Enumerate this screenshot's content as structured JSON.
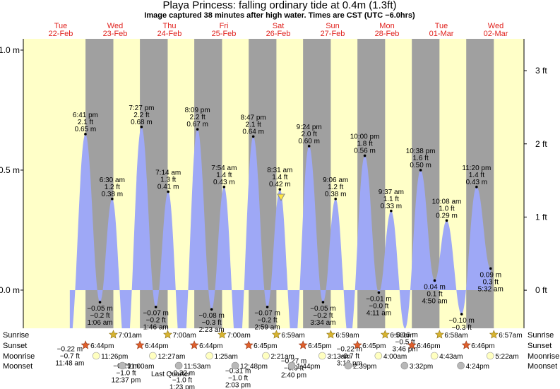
{
  "chart_data": {
    "type": "tide",
    "title": "Playa Princess: falling  ordinary tide at 0.4m (1.3ft)",
    "subtitle": "Image captured 38 minutes after high water. Times are CST (UTC −6.0hrs)",
    "current_m": 0.4,
    "days": [
      {
        "weekday": "Tue",
        "date": "22-Feb"
      },
      {
        "weekday": "Wed",
        "date": "23-Feb"
      },
      {
        "weekday": "Thu",
        "date": "24-Feb"
      },
      {
        "weekday": "Fri",
        "date": "25-Feb"
      },
      {
        "weekday": "Sat",
        "date": "26-Feb"
      },
      {
        "weekday": "Sun",
        "date": "27-Feb"
      },
      {
        "weekday": "Mon",
        "date": "28-Feb"
      },
      {
        "weekday": "Tue",
        "date": "01-Mar"
      },
      {
        "weekday": "Wed",
        "date": "02-Mar"
      }
    ],
    "ylim": [
      -0.159,
      1.047
    ],
    "yticks": [
      {
        "value": 1.0,
        "label": "1.0 m"
      },
      {
        "value": 0.5,
        "label": "0.5 m"
      },
      {
        "value": 0,
        "label": "0.0 m"
      }
    ],
    "y2lim": [
      -0.52,
      3.435
    ],
    "y2ticks": [
      {
        "value": 0,
        "label": "0 ft"
      },
      {
        "value": 1,
        "label": "1 ft"
      },
      {
        "value": 2,
        "label": "2 ft"
      },
      {
        "value": 3,
        "label": "3 ft"
      }
    ],
    "color": "#9ea8f6",
    "tides": [
      {
        "date": "22-Feb",
        "time": "11:48 am",
        "value": -0.22,
        "label": "−0.22 m",
        "ft_label": "−0.7 ft"
      },
      {
        "date": "22-Feb",
        "time": "6:41 pm",
        "value": 0.65,
        "label": "0.65 m",
        "ft_label": "2.1 ft"
      },
      {
        "date": "23-Feb",
        "time": "1:06 am",
        "value": -0.05,
        "label": "−0.05 m",
        "ft_label": "−0.2 ft"
      },
      {
        "date": "23-Feb",
        "time": "6:30 am",
        "value": 0.38,
        "label": "0.38 m",
        "ft_label": "1.2 ft"
      },
      {
        "date": "23-Feb",
        "time": "12:37 pm",
        "value": -0.29,
        "label": "−0.29 m",
        "ft_label": "−1.0 ft"
      },
      {
        "date": "23-Feb",
        "time": "7:27 pm",
        "value": 0.68,
        "label": "0.68 m",
        "ft_label": "2.2 ft"
      },
      {
        "date": "24-Feb",
        "time": "1:46 am",
        "value": -0.07,
        "label": "−0.07 m",
        "ft_label": "−0.2 ft"
      },
      {
        "date": "24-Feb",
        "time": "7:14 am",
        "value": 0.41,
        "label": "0.41 m",
        "ft_label": "1.3 ft"
      },
      {
        "date": "24-Feb",
        "time": "1:23 pm",
        "value": -0.32,
        "label": "−0.32 m",
        "ft_label": "−1.0 ft"
      },
      {
        "date": "24-Feb",
        "time": "8:09 pm",
        "value": 0.67,
        "label": "0.67 m",
        "ft_label": "2.2 ft"
      },
      {
        "date": "25-Feb",
        "time": "2:23 am",
        "value": -0.08,
        "label": "−0.08 m",
        "ft_label": "−0.3 ft"
      },
      {
        "date": "25-Feb",
        "time": "7:54 am",
        "value": 0.43,
        "label": "0.43 m",
        "ft_label": "1.4 ft"
      },
      {
        "date": "25-Feb",
        "time": "2:03 pm",
        "value": -0.31,
        "label": "−0.31 m",
        "ft_label": "−1.0 ft"
      },
      {
        "date": "25-Feb",
        "time": "8:47 pm",
        "value": 0.64,
        "label": "0.64 m",
        "ft_label": "2.1 ft"
      },
      {
        "date": "26-Feb",
        "time": "2:59 am",
        "value": -0.07,
        "label": "−0.07 m",
        "ft_label": "−0.2 ft"
      },
      {
        "date": "26-Feb",
        "time": "8:31 am",
        "value": 0.42,
        "label": "0.42 m",
        "ft_label": "1.4 ft"
      },
      {
        "date": "26-Feb",
        "time": "2:40 pm",
        "value": -0.27,
        "label": "−0.27 m",
        "ft_label": "−0.9 ft"
      },
      {
        "date": "26-Feb",
        "time": "9:24 pm",
        "value": 0.6,
        "label": "0.60 m",
        "ft_label": "2.0 ft"
      },
      {
        "date": "27-Feb",
        "time": "3:34 am",
        "value": -0.05,
        "label": "−0.05 m",
        "ft_label": "−0.2 ft"
      },
      {
        "date": "27-Feb",
        "time": "9:06 am",
        "value": 0.38,
        "label": "0.38 m",
        "ft_label": "1.2 ft"
      },
      {
        "date": "27-Feb",
        "time": "3:13 pm",
        "value": -0.22,
        "label": "−0.22 m",
        "ft_label": "−0.7 ft"
      },
      {
        "date": "27-Feb",
        "time": "10:00 pm",
        "value": 0.56,
        "label": "0.56 m",
        "ft_label": "1.8 ft"
      },
      {
        "date": "28-Feb",
        "time": "4:11 am",
        "value": -0.01,
        "label": "−0.01 m",
        "ft_label": "−0.0 ft"
      },
      {
        "date": "28-Feb",
        "time": "9:37 am",
        "value": 0.33,
        "label": "0.33 m",
        "ft_label": "1.1 ft"
      },
      {
        "date": "28-Feb",
        "time": "3:46 pm",
        "value": -0.16,
        "label": "−0.16 m",
        "ft_label": "−0.5 ft"
      },
      {
        "date": "28-Feb",
        "time": "10:38 pm",
        "value": 0.5,
        "label": "0.50 m",
        "ft_label": "1.6 ft"
      },
      {
        "date": "01-Mar",
        "time": "4:50 am",
        "value": 0.04,
        "label": "0.04 m",
        "ft_label": "0.1 ft"
      },
      {
        "date": "01-Mar",
        "time": "10:08 am",
        "value": 0.29,
        "label": "0.29 m",
        "ft_label": "1.0 ft"
      },
      {
        "date": "01-Mar",
        "time": null,
        "value": -0.1,
        "label": "−0.10 m",
        "ft_label": "−0.3 ft"
      },
      {
        "date": "01-Mar",
        "time": "11:20 pm",
        "value": 0.43,
        "label": "0.43 m",
        "ft_label": "1.4 ft"
      },
      {
        "date": "02-Mar",
        "time": "5:32 am",
        "value": 0.09,
        "label": "0.09 m",
        "ft_label": "0.3 ft"
      }
    ],
    "events": [
      {
        "name": "Sunrise",
        "items": [
          {
            "date": "23-Feb",
            "time": "7:01am"
          },
          {
            "date": "24-Feb",
            "time": "7:00am"
          },
          {
            "date": "25-Feb",
            "time": "7:00am"
          },
          {
            "date": "26-Feb",
            "time": "6:59am"
          },
          {
            "date": "27-Feb",
            "time": "6:59am"
          },
          {
            "date": "28-Feb",
            "time": "6:58am"
          },
          {
            "date": "01-Mar",
            "time": "6:58am"
          },
          {
            "date": "02-Mar",
            "time": "6:57am"
          }
        ]
      },
      {
        "name": "Sunset",
        "items": [
          {
            "date": "22-Feb",
            "time": "6:44pm"
          },
          {
            "date": "23-Feb",
            "time": "6:44pm"
          },
          {
            "date": "24-Feb",
            "time": "6:44pm"
          },
          {
            "date": "25-Feb",
            "time": "6:45pm"
          },
          {
            "date": "26-Feb",
            "time": "6:45pm"
          },
          {
            "date": "27-Feb",
            "time": "6:45pm"
          },
          {
            "date": "28-Feb",
            "time": "6:46pm"
          },
          {
            "date": "01-Mar",
            "time": "6:46pm"
          }
        ]
      },
      {
        "name": "Moonrise",
        "items": [
          {
            "date": "22-Feb",
            "time": "11:26pm"
          },
          {
            "date": "24-Feb",
            "time": "12:27am"
          },
          {
            "date": "25-Feb",
            "time": "1:25am"
          },
          {
            "date": "26-Feb",
            "time": "2:21am"
          },
          {
            "date": "27-Feb",
            "time": "3:13am"
          },
          {
            "date": "28-Feb",
            "time": "4:00am"
          },
          {
            "date": "01-Mar",
            "time": "4:43am"
          },
          {
            "date": "02-Mar",
            "time": "5:22am"
          }
        ]
      },
      {
        "name": "Moonset",
        "items": [
          {
            "date": "23-Feb",
            "time": "11:00am"
          },
          {
            "date": "24-Feb",
            "time": "11:53am"
          },
          {
            "date": "25-Feb",
            "time": "12:48pm"
          },
          {
            "date": "26-Feb",
            "time": "1:44pm"
          },
          {
            "date": "27-Feb",
            "time": "2:39pm"
          },
          {
            "date": "28-Feb",
            "time": "3:32pm"
          },
          {
            "date": "01-Mar",
            "time": "4:24pm"
          }
        ]
      }
    ],
    "moon_phase": "Last Quarter"
  }
}
